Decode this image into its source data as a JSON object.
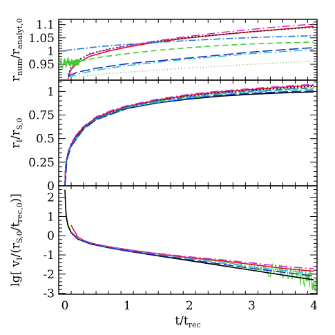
{
  "chart_data": [
    {
      "type": "line",
      "panel": "top",
      "ylabel": {
        "main": "r",
        "sub1": "num",
        "mid": "/r",
        "sub2": "analyt,0"
      },
      "xlim": [
        -0.1,
        4.05
      ],
      "ylim": [
        0.89,
        1.12
      ],
      "yticks": [
        0.95,
        1,
        1.05,
        1.1
      ],
      "yticklabels": [
        "0.95",
        "1",
        "1.05",
        "1.1"
      ],
      "series": [
        {
          "color": "#e8101a",
          "dash": "",
          "x": [
            0.05,
            0.1,
            0.2,
            0.4,
            0.7,
            1.0,
            1.5,
            2.0,
            2.5,
            3.0,
            3.5,
            4.0
          ],
          "y": [
            0.895,
            0.93,
            0.955,
            0.98,
            1.0,
            1.015,
            1.035,
            1.05,
            1.062,
            1.073,
            1.083,
            1.093
          ]
        },
        {
          "color": "#111111",
          "dash": "2,3",
          "x": [
            0.05,
            0.1,
            0.2,
            0.4,
            0.7,
            1.0,
            1.5,
            2.0,
            2.5,
            3.0,
            3.5,
            4.0
          ],
          "y": [
            0.91,
            0.94,
            0.965,
            0.99,
            1.008,
            1.02,
            1.038,
            1.052,
            1.063,
            1.073,
            1.082,
            1.09
          ]
        },
        {
          "color": "#d22ad8",
          "dash": "12,4,2,4",
          "x": [
            0.05,
            0.1,
            0.2,
            0.4,
            0.7,
            1.0,
            1.5,
            2.0,
            2.5,
            3.0,
            3.5,
            4.0
          ],
          "y": [
            0.9,
            0.935,
            0.962,
            0.988,
            1.006,
            1.02,
            1.04,
            1.056,
            1.07,
            1.082,
            1.093,
            1.102
          ]
        },
        {
          "color": "#1a7bd6",
          "dash": "10,3,2,3",
          "x": [
            0.0,
            0.1,
            0.3,
            0.6,
            1.0,
            1.5,
            2.0,
            2.5,
            3.0,
            3.5,
            4.0
          ],
          "y": [
            1.002,
            1.005,
            1.01,
            1.018,
            1.025,
            1.033,
            1.04,
            1.046,
            1.051,
            1.055,
            1.058
          ]
        },
        {
          "color": "#3ccd2c",
          "dash": "8,5",
          "x": [
            0.1,
            0.3,
            0.6,
            1.0,
            1.5,
            2.0,
            2.5,
            3.0,
            3.5,
            4.0
          ],
          "y": [
            0.955,
            0.965,
            0.978,
            0.99,
            1.003,
            1.013,
            1.021,
            1.027,
            1.031,
            1.034
          ]
        },
        {
          "color": "#1a2fc0",
          "dash": "14,5",
          "x": [
            0.05,
            0.2,
            0.5,
            1.0,
            1.5,
            2.0,
            2.5,
            3.0,
            3.5,
            4.0
          ],
          "y": [
            0.905,
            0.92,
            0.935,
            0.952,
            0.963,
            0.974,
            0.985,
            0.996,
            1.005,
            1.013
          ]
        },
        {
          "color": "#2cc6e0",
          "dash": "12,4,2,4",
          "x": [
            0.05,
            0.2,
            0.5,
            1.0,
            1.5,
            2.0,
            2.5,
            3.0,
            3.5,
            4.0
          ],
          "y": [
            0.9,
            0.912,
            0.928,
            0.945,
            0.958,
            0.97,
            0.98,
            0.99,
            0.998,
            1.006
          ]
        },
        {
          "color": "#7fc26a",
          "dash": "1,3",
          "x": [
            0.05,
            0.3,
            0.7,
            1.0,
            1.5,
            2.0,
            2.5,
            3.0,
            3.5,
            4.0
          ],
          "y": [
            0.9,
            0.905,
            0.915,
            0.92,
            0.928,
            0.936,
            0.943,
            0.95,
            0.956,
            0.962
          ]
        },
        {
          "color": "#3ccd2c",
          "dash": "",
          "noise": 0.012,
          "x": [
            -0.07,
            -0.04,
            -0.01,
            0.02,
            0.05,
            0.08,
            0.11,
            0.14,
            0.17,
            0.2,
            0.23
          ],
          "y": [
            0.96,
            0.94,
            0.97,
            0.945,
            0.965,
            0.95,
            0.96,
            0.952,
            0.958,
            0.955,
            0.957
          ]
        }
      ]
    },
    {
      "type": "line",
      "panel": "middle",
      "ylabel": {
        "main": "r",
        "sub1": "I",
        "mid": "/r",
        "sub2": "S,0"
      },
      "xlim": [
        -0.1,
        4.05
      ],
      "ylim": [
        0,
        1.12
      ],
      "yticks": [
        0,
        0.25,
        0.5,
        0.75,
        1
      ],
      "yticklabels": [
        "0",
        "0.25",
        "0.5",
        "0.75",
        "1"
      ],
      "series": [
        {
          "color": "#000000",
          "dash": "",
          "x": [
            0,
            0.01,
            0.03,
            0.06,
            0.1,
            0.2,
            0.3,
            0.5,
            0.75,
            1.0,
            1.5,
            2.0,
            2.5,
            3.0,
            3.5,
            4.0
          ],
          "y": [
            0,
            0.2,
            0.28,
            0.36,
            0.43,
            0.54,
            0.61,
            0.7,
            0.77,
            0.82,
            0.88,
            0.92,
            0.95,
            0.97,
            0.985,
            0.995
          ]
        },
        {
          "color": "#e8101a",
          "dash": "",
          "x": [
            0,
            0.01,
            0.03,
            0.06,
            0.1,
            0.2,
            0.3,
            0.5,
            0.75,
            1.0,
            1.5,
            2.0,
            2.5,
            3.0,
            3.5,
            4.0
          ],
          "y": [
            0,
            0.2,
            0.29,
            0.37,
            0.44,
            0.55,
            0.62,
            0.72,
            0.79,
            0.84,
            0.91,
            0.96,
            0.995,
            1.02,
            1.045,
            1.065
          ]
        },
        {
          "color": "#d22ad8",
          "dash": "12,4,2,4",
          "x": [
            0,
            0.01,
            0.03,
            0.06,
            0.1,
            0.2,
            0.3,
            0.5,
            0.75,
            1.0,
            1.5,
            2.0,
            2.5,
            3.0,
            3.5,
            4.0
          ],
          "y": [
            0,
            0.21,
            0.3,
            0.38,
            0.45,
            0.56,
            0.63,
            0.73,
            0.8,
            0.85,
            0.92,
            0.97,
            1.005,
            1.03,
            1.055,
            1.075
          ]
        },
        {
          "color": "#111111",
          "dash": "2,3",
          "x": [
            0,
            0.03,
            0.1,
            0.3,
            0.5,
            1.0,
            1.5,
            2.0,
            2.5,
            3.0,
            3.5,
            4.0
          ],
          "y": [
            0,
            0.29,
            0.44,
            0.62,
            0.72,
            0.84,
            0.905,
            0.955,
            0.99,
            1.015,
            1.035,
            1.055
          ]
        },
        {
          "color": "#3ccd2c",
          "dash": "8,5",
          "x": [
            0,
            0.03,
            0.1,
            0.3,
            0.5,
            1.0,
            1.5,
            2.0,
            2.5,
            3.0,
            3.5,
            4.0
          ],
          "y": [
            0,
            0.28,
            0.43,
            0.61,
            0.71,
            0.83,
            0.895,
            0.94,
            0.975,
            1.0,
            1.02,
            1.035
          ]
        },
        {
          "color": "#1a7bd6",
          "dash": "10,3,2,3",
          "x": [
            0,
            0.03,
            0.1,
            0.3,
            0.5,
            1.0,
            1.5,
            2.0,
            2.5,
            3.0,
            3.5,
            4.0
          ],
          "y": [
            0,
            0.28,
            0.43,
            0.61,
            0.71,
            0.835,
            0.9,
            0.945,
            0.98,
            1.005,
            1.025,
            1.04
          ]
        },
        {
          "color": "#2cc6e0",
          "dash": "12,4,2,4",
          "x": [
            0,
            0.03,
            0.1,
            0.3,
            0.5,
            1.0,
            1.5,
            2.0,
            2.5,
            3.0,
            3.5,
            4.0
          ],
          "y": [
            0,
            0.27,
            0.42,
            0.6,
            0.7,
            0.82,
            0.885,
            0.93,
            0.965,
            0.99,
            1.01,
            1.02
          ]
        },
        {
          "color": "#1a2fc0",
          "dash": "14,5",
          "x": [
            0,
            0.03,
            0.1,
            0.3,
            0.5,
            1.0,
            1.5,
            2.0,
            2.5,
            3.0,
            3.5,
            4.0
          ],
          "y": [
            0,
            0.27,
            0.42,
            0.6,
            0.7,
            0.82,
            0.88,
            0.925,
            0.96,
            0.98,
            0.995,
            1.005
          ]
        }
      ]
    },
    {
      "type": "line",
      "panel": "bottom",
      "ylabel": {
        "prefix": "lg[ v",
        "sub1": "I",
        "mid": "/(r",
        "sub2": "S,0",
        "mid2": "/t",
        "sub3": "rec,0",
        "suffix": ")]"
      },
      "xlabel": {
        "main": "t/t",
        "sub": "rec"
      },
      "xlim": [
        -0.1,
        4.05
      ],
      "ylim": [
        -3.05,
        2.6
      ],
      "xticks": [
        0,
        1,
        2,
        3,
        4
      ],
      "xticklabels": [
        "0",
        "1",
        "2",
        "3",
        "4"
      ],
      "yticks": [
        -3,
        -2,
        -1,
        0,
        1,
        2
      ],
      "yticklabels": [
        "-3",
        "-2",
        "-1",
        "0",
        "1",
        "2"
      ],
      "series": [
        {
          "color": "#3ccd2c",
          "dash": "",
          "noise": 0.18,
          "noiseStart": 2.8,
          "x": [
            0.0,
            0.02,
            0.05,
            0.1,
            0.2,
            0.4,
            0.7,
            1.0,
            1.5,
            2.0,
            2.5,
            3.0,
            3.3,
            3.6,
            3.9,
            4.05
          ],
          "y": [
            2.3,
            1.2,
            0.6,
            0.2,
            -0.15,
            -0.4,
            -0.6,
            -0.75,
            -0.95,
            -1.15,
            -1.35,
            -1.6,
            -1.8,
            -2.0,
            -2.2,
            -2.35
          ]
        },
        {
          "color": "#000000",
          "dash": "",
          "x": [
            0.0,
            0.01,
            0.02,
            0.05,
            0.1,
            0.2,
            0.4,
            0.7,
            1.0,
            1.5,
            2.0,
            2.5,
            3.0,
            3.5,
            4.0
          ],
          "y": [
            2.4,
            1.6,
            1.0,
            0.5,
            0.15,
            -0.17,
            -0.42,
            -0.63,
            -0.8,
            -1.05,
            -1.3,
            -1.55,
            -1.8,
            -2.05,
            -2.3
          ]
        },
        {
          "color": "#e8101a",
          "dash": "",
          "x": [
            0.1,
            0.13,
            0.17,
            0.2,
            0.3,
            0.5,
            0.8,
            1.0,
            1.5,
            2.0,
            2.5,
            3.0,
            3.5,
            4.0
          ],
          "y": [
            0.55,
            0.35,
            0.15,
            -0.05,
            -0.25,
            -0.45,
            -0.62,
            -0.72,
            -0.95,
            -1.15,
            -1.3,
            -1.5,
            -1.7,
            -1.85
          ]
        },
        {
          "color": "#d22ad8",
          "dash": "12,4,2,4",
          "x": [
            0.1,
            0.2,
            0.4,
            0.7,
            1.0,
            1.5,
            2.0,
            2.5,
            3.0,
            3.5,
            4.0
          ],
          "y": [
            0.2,
            -0.12,
            -0.37,
            -0.57,
            -0.73,
            -0.93,
            -1.1,
            -1.25,
            -1.42,
            -1.6,
            -1.72
          ]
        },
        {
          "color": "#2cc6e0",
          "dash": "12,4,2,4",
          "x": [
            0.1,
            0.2,
            0.4,
            0.7,
            1.0,
            1.5,
            2.0,
            2.5,
            3.0,
            3.5,
            4.0
          ],
          "y": [
            0.15,
            -0.15,
            -0.4,
            -0.6,
            -0.77,
            -1.0,
            -1.2,
            -1.42,
            -1.62,
            -1.8,
            -1.98
          ]
        },
        {
          "color": "#1a2fc0",
          "dash": "14,5",
          "x": [
            0.1,
            0.2,
            0.4,
            0.7,
            1.0,
            1.5,
            2.0,
            2.5,
            3.0,
            3.5,
            4.0
          ],
          "y": [
            0.15,
            -0.16,
            -0.41,
            -0.62,
            -0.78,
            -1.02,
            -1.25,
            -1.48,
            -1.7,
            -1.9,
            -2.1
          ]
        }
      ]
    }
  ]
}
